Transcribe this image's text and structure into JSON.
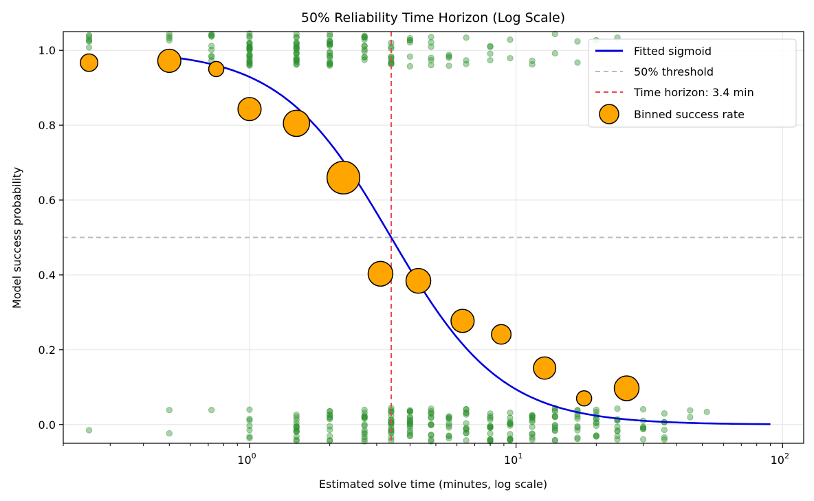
{
  "chart_data": {
    "type": "scatter",
    "title": "50% Reliability Time Horizon (Log Scale)",
    "xlabel": "Estimated solve time (minutes, log scale)",
    "ylabel": "Model success probability",
    "xscale": "log",
    "xlim": [
      0.2,
      120
    ],
    "ylim": [
      -0.05,
      1.05
    ],
    "grid": true,
    "legend_position": "top-right",
    "x_ticks": [
      {
        "value": 1,
        "base": "10",
        "exp": "0"
      },
      {
        "value": 10,
        "base": "10",
        "exp": "1"
      },
      {
        "value": 100,
        "base": "10",
        "exp": "2"
      }
    ],
    "y_ticks": [
      {
        "value": 0.0,
        "label": "0.0"
      },
      {
        "value": 0.2,
        "label": "0.2"
      },
      {
        "value": 0.4,
        "label": "0.4"
      },
      {
        "value": 0.6,
        "label": "0.6"
      },
      {
        "value": 0.8,
        "label": "0.8"
      },
      {
        "value": 1.0,
        "label": "1.0"
      }
    ],
    "colors": {
      "sigmoid": "#0000dd",
      "threshold": "#bbbbbb",
      "horizon": "#e84a4a",
      "binned_fill": "#ffa500",
      "binned_edge": "#000000",
      "raw_points": "#2a8f2a"
    },
    "sigmoid": {
      "name": "Fitted sigmoid",
      "x_start": 0.5,
      "x_end": 90,
      "midpoint": 3.4,
      "slope": 2.1
    },
    "threshold": {
      "name": "50% threshold",
      "y": 0.5
    },
    "horizon": {
      "name": "Time horizon: 3.4 min",
      "x": 3.4
    },
    "binned": {
      "name": "Binned success rate",
      "points": [
        {
          "x": 0.25,
          "y": 0.967,
          "n": 8
        },
        {
          "x": 0.5,
          "y": 0.972,
          "n": 14
        },
        {
          "x": 0.75,
          "y": 0.95,
          "n": 6
        },
        {
          "x": 1.0,
          "y": 0.843,
          "n": 14
        },
        {
          "x": 1.5,
          "y": 0.805,
          "n": 18
        },
        {
          "x": 2.25,
          "y": 0.66,
          "n": 28
        },
        {
          "x": 3.1,
          "y": 0.403,
          "n": 16
        },
        {
          "x": 4.3,
          "y": 0.384,
          "n": 16
        },
        {
          "x": 6.3,
          "y": 0.277,
          "n": 14
        },
        {
          "x": 8.8,
          "y": 0.241,
          "n": 10
        },
        {
          "x": 12.8,
          "y": 0.151,
          "n": 13
        },
        {
          "x": 18,
          "y": 0.07,
          "n": 6
        },
        {
          "x": 26,
          "y": 0.097,
          "n": 16
        }
      ]
    },
    "raw_columns": [
      {
        "x": 0.25,
        "succ": 10,
        "fail": 1
      },
      {
        "x": 0.5,
        "succ": 12,
        "fail": 2
      },
      {
        "x": 0.72,
        "succ": 9,
        "fail": 1
      },
      {
        "x": 1.0,
        "succ": 24,
        "fail": 7
      },
      {
        "x": 1.5,
        "succ": 22,
        "fail": 14
      },
      {
        "x": 2.0,
        "succ": 19,
        "fail": 12
      },
      {
        "x": 2.7,
        "succ": 12,
        "fail": 15
      },
      {
        "x": 3.4,
        "succ": 10,
        "fail": 18
      },
      {
        "x": 4.0,
        "succ": 6,
        "fail": 17
      },
      {
        "x": 4.8,
        "succ": 6,
        "fail": 13
      },
      {
        "x": 5.6,
        "succ": 4,
        "fail": 10
      },
      {
        "x": 6.5,
        "succ": 3,
        "fail": 12
      },
      {
        "x": 8.0,
        "succ": 4,
        "fail": 14
      },
      {
        "x": 9.5,
        "succ": 2,
        "fail": 12
      },
      {
        "x": 11.5,
        "succ": 2,
        "fail": 12
      },
      {
        "x": 14,
        "succ": 2,
        "fail": 13
      },
      {
        "x": 17,
        "succ": 2,
        "fail": 10
      },
      {
        "x": 20,
        "succ": 1,
        "fail": 11
      },
      {
        "x": 24,
        "succ": 1,
        "fail": 9
      },
      {
        "x": 30,
        "succ": 0,
        "fail": 7
      },
      {
        "x": 36,
        "succ": 0,
        "fail": 6
      },
      {
        "x": 45,
        "succ": 0,
        "fail": 2
      },
      {
        "x": 52,
        "succ": 0,
        "fail": 1
      }
    ]
  }
}
